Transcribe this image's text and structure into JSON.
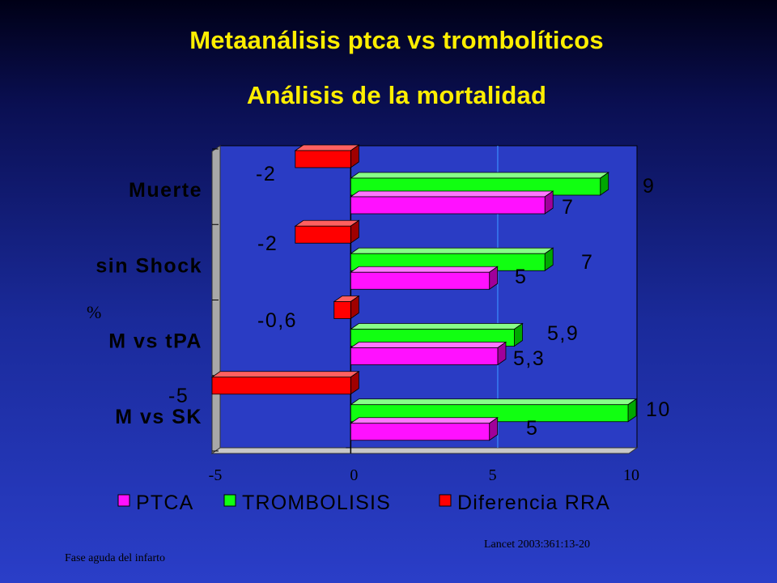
{
  "title": "Metaanálisis ptca vs trombolíticos",
  "subtitle": "Análisis de la mortalidad",
  "footer_left": "Fase aguda del infarto",
  "footer_right": "Lancet 2003:361:13-20",
  "colors": {
    "ptca": "#ff11ff",
    "ptca_top": "#ff77ff",
    "ptca_side": "#a0009a",
    "trombolisis": "#11ff11",
    "trombolisis_top": "#88ff88",
    "trombolisis_side": "#00a800",
    "diferencia": "#ff0000",
    "diferencia_top": "#ff6060",
    "diferencia_side": "#a00000",
    "plot_bg": "#2a3cc4",
    "refline": "#3a8cff"
  },
  "chart_data": {
    "type": "bar",
    "orientation": "horizontal",
    "categories": [
      "Muerte",
      "sin Shock",
      "M vs tPA",
      "M vs SK"
    ],
    "series": [
      {
        "name": "PTCA",
        "values": [
          7,
          5,
          5.3,
          5
        ],
        "labels": [
          "7",
          "5",
          "5,3",
          "5"
        ]
      },
      {
        "name": "TROMBOLISIS",
        "values": [
          9,
          7,
          5.9,
          10
        ],
        "labels": [
          "9",
          "7",
          "5,9",
          "10"
        ]
      },
      {
        "name": "Diferencia RRA",
        "values": [
          -2,
          -2,
          -0.6,
          -5
        ],
        "labels": [
          "-2",
          "-2",
          "-0,6",
          "-5"
        ]
      }
    ],
    "xlim": [
      -5,
      10
    ],
    "xticks": [
      "-5",
      "0",
      "5",
      "10"
    ],
    "reference_line": 5.3,
    "ylabel": "%",
    "legend": [
      "PTCA",
      "TROMBOLISIS",
      "Diferencia RRA"
    ],
    "legend_position": "bottom",
    "grid": false
  }
}
